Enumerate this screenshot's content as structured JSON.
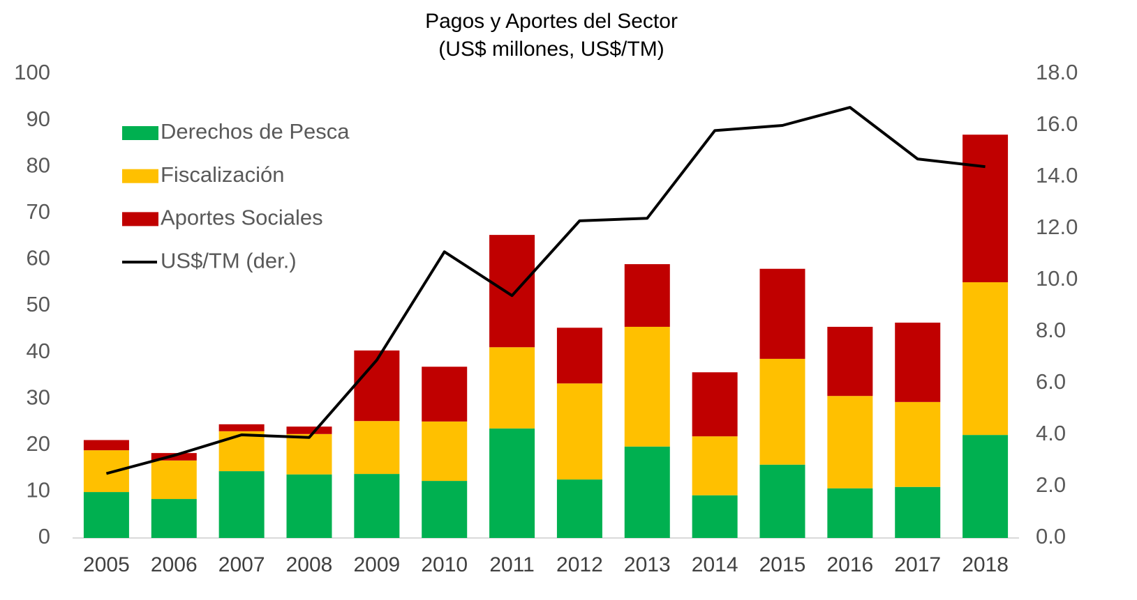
{
  "chart_data": {
    "type": "bar",
    "stacked": true,
    "title": "Pagos y Aportes del Sector",
    "subtitle": "(US$ millones, US$/TM)",
    "categories": [
      "2005",
      "2006",
      "2007",
      "2008",
      "2009",
      "2010",
      "2011",
      "2012",
      "2013",
      "2014",
      "2015",
      "2016",
      "2017",
      "2018"
    ],
    "series": [
      {
        "name": "Derechos de Pesca",
        "color": "#00b050",
        "values": [
          9.9,
          8.4,
          14.4,
          13.7,
          13.8,
          12.3,
          23.6,
          12.6,
          19.7,
          9.2,
          15.8,
          10.7,
          11.0,
          22.2
        ]
      },
      {
        "name": "Fiscalización",
        "color": "#ffc000",
        "values": [
          9.0,
          8.3,
          8.6,
          8.7,
          11.4,
          12.8,
          17.5,
          20.7,
          25.8,
          12.7,
          22.8,
          19.9,
          18.3,
          32.9
        ]
      },
      {
        "name": "Aportes Sociales",
        "color": "#c00000",
        "values": [
          2.2,
          1.6,
          1.5,
          1.6,
          15.2,
          11.8,
          24.2,
          12.0,
          13.5,
          13.8,
          19.4,
          14.9,
          17.1,
          31.8
        ]
      },
      {
        "name": "US$/TM (der.)",
        "color": "#000000",
        "type": "line",
        "axis": "y2",
        "values": [
          2.5,
          3.2,
          4.0,
          3.9,
          6.9,
          11.1,
          9.4,
          12.3,
          12.4,
          15.8,
          16.0,
          16.7,
          14.7,
          14.4
        ]
      }
    ],
    "ylim": [
      0,
      100
    ],
    "yticks": [
      0,
      10,
      20,
      30,
      40,
      50,
      60,
      70,
      80,
      90,
      100
    ],
    "y2lim": [
      0,
      18
    ],
    "y2ticks": [
      {
        "value": 0,
        "label": "0.0"
      },
      {
        "value": 2,
        "label": "2.0"
      },
      {
        "value": 4,
        "label": "4.0"
      },
      {
        "value": 6,
        "label": "6.0"
      },
      {
        "value": 8,
        "label": "8.0"
      },
      {
        "value": 10,
        "label": "10.0"
      },
      {
        "value": 12,
        "label": "12.0"
      },
      {
        "value": 14,
        "label": "14.0"
      },
      {
        "value": 16,
        "label": "16.0"
      },
      {
        "value": 18,
        "label": "18.0"
      }
    ],
    "legend": "upper left",
    "grid": false
  }
}
